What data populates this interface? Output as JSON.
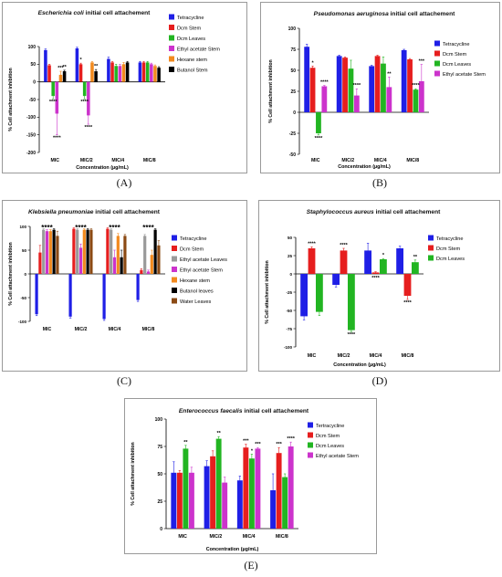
{
  "panels": [
    {
      "letter": "(A)",
      "title_italic": "Escherichia coli",
      "title_rest": " initial cell attachement",
      "chart_data": {
        "type": "bar",
        "title": "Escherichia coli initial cell attachement",
        "xlabel": "Concentration (µg/mL)",
        "ylabel": "% Cell attachment inhibition",
        "ylim": [
          -200,
          100
        ],
        "yticks": [
          -200,
          -150,
          -100,
          -50,
          0,
          50,
          100
        ],
        "categories": [
          "MIC",
          "MIC/2",
          "MIC/4",
          "MIC/8"
        ],
        "legend_position": "right",
        "series": [
          {
            "name": "Tetracycline",
            "color": "#1f1fe6",
            "values": [
              90,
              95,
              65,
              55
            ],
            "errors": [
              3,
              3,
              5,
              3
            ]
          },
          {
            "name": "Dcm Stem",
            "color": "#e61e1e",
            "values": [
              47,
              50,
              55,
              55
            ],
            "errors": [
              3,
              3,
              3,
              3
            ]
          },
          {
            "name": "Dcm Leaves",
            "color": "#22b522",
            "values": [
              -40,
              -40,
              45,
              55
            ],
            "errors": [
              8,
              8,
              5,
              3
            ]
          },
          {
            "name": "Ethyl acetate Stem",
            "color": "#cc33cc",
            "values": [
              -90,
              -95,
              45,
              50
            ],
            "errors": [
              60,
              25,
              5,
              3
            ]
          },
          {
            "name": "Hexane stem",
            "color": "#f28a1e",
            "values": [
              20,
              55,
              50,
              45
            ],
            "errors": [
              10,
              3,
              5,
              3
            ]
          },
          {
            "name": "Butanol Stem",
            "color": "#000000",
            "values": [
              30,
              30,
              55,
              40
            ],
            "errors": [
              3,
              5,
              3,
              3
            ]
          }
        ],
        "annotations": [
          {
            "category": 0,
            "series": 3,
            "text": "****",
            "side": "below"
          },
          {
            "category": 0,
            "series": 2,
            "text": "****",
            "side": "below"
          },
          {
            "category": 0,
            "series": 4,
            "text": "***",
            "side": "above"
          },
          {
            "category": 0,
            "series": 5,
            "text": "**",
            "side": "above"
          },
          {
            "category": 1,
            "series": 1,
            "text": "*",
            "side": "above"
          },
          {
            "category": 1,
            "series": 3,
            "text": "****",
            "side": "below"
          },
          {
            "category": 1,
            "series": 2,
            "text": "****",
            "side": "below"
          },
          {
            "category": 1,
            "series": 5,
            "text": "**",
            "side": "above"
          }
        ]
      }
    },
    {
      "letter": "(B)",
      "title_italic": "Pseudomonas aeruginosa",
      "title_rest": " initial cell attachement",
      "chart_data": {
        "type": "bar",
        "title": "Pseudomonas aeruginosa initial cell attachement",
        "xlabel": "Concentration (µg/mL)",
        "ylabel": "% Cell attachment inhibition",
        "ylim": [
          -50,
          100
        ],
        "yticks": [
          -50,
          -25,
          0,
          25,
          50,
          75,
          100
        ],
        "categories": [
          "MIC",
          "MIC/2",
          "MIC/4",
          "MIC/8"
        ],
        "legend_position": "right",
        "series": [
          {
            "name": "Tetracycline",
            "color": "#1f1fe6",
            "values": [
              78,
              67,
              55,
              74
            ],
            "errors": [
              3,
              1,
              1,
              1
            ]
          },
          {
            "name": "Dcm Stem",
            "color": "#e61e1e",
            "values": [
              53,
              65,
              67,
              63
            ],
            "errors": [
              2,
              1,
              1,
              1
            ]
          },
          {
            "name": "Dcm Leaves",
            "color": "#22b522",
            "values": [
              -25,
              52,
              58,
              27
            ],
            "errors": [
              2,
              10,
              8,
              1
            ]
          },
          {
            "name": "Ethyl acetate Stem",
            "color": "#cc33cc",
            "values": [
              31,
              20,
              30,
              37
            ],
            "errors": [
              1,
              8,
              12,
              20
            ]
          }
        ],
        "annotations": [
          {
            "category": 0,
            "series": 1,
            "text": "*",
            "side": "above"
          },
          {
            "category": 0,
            "series": 2,
            "text": "****",
            "side": "below"
          },
          {
            "category": 0,
            "series": 3,
            "text": "****",
            "side": "above"
          },
          {
            "category": 1,
            "series": 3,
            "text": "****",
            "side": "above"
          },
          {
            "category": 2,
            "series": 3,
            "text": "**",
            "side": "above"
          },
          {
            "category": 3,
            "series": 2,
            "text": "****",
            "side": "above"
          },
          {
            "category": 3,
            "series": 3,
            "text": "***",
            "side": "above"
          }
        ]
      }
    },
    {
      "letter": "(C)",
      "title_italic": "Klebsiella pneumoniae",
      "title_rest": " initial cell attachement",
      "chart_data": {
        "type": "bar",
        "title": "Klebsiella pneumoniae initial cell attachement",
        "xlabel": "",
        "ylabel": "% Cell attachment inhibition",
        "ylim": [
          -100,
          100
        ],
        "yticks": [
          -100,
          -50,
          0,
          50,
          100
        ],
        "categories": [
          "MIC",
          "MIC/2",
          "MIC/4",
          "MIC/8"
        ],
        "legend_position": "right",
        "series": [
          {
            "name": "Tetracycline",
            "color": "#1f1fe6",
            "values": [
              -85,
              -90,
              -95,
              -55
            ],
            "errors": [
              3,
              3,
              3,
              3
            ]
          },
          {
            "name": "Dcm Stem",
            "color": "#e61e1e",
            "values": [
              45,
              95,
              95,
              8
            ],
            "errors": [
              15,
              2,
              2,
              3
            ]
          },
          {
            "name": "Ethyl acetate Leaves",
            "color": "#9a9a9a",
            "values": [
              93,
              93,
              93,
              80
            ],
            "errors": [
              2,
              2,
              2,
              3
            ]
          },
          {
            "name": "Ethyl acetate Stem",
            "color": "#cc33cc",
            "values": [
              90,
              55,
              35,
              5
            ],
            "errors": [
              3,
              8,
              15,
              3
            ]
          },
          {
            "name": "Hexane stem",
            "color": "#f28a1e",
            "values": [
              90,
              93,
              80,
              40
            ],
            "errors": [
              3,
              2,
              5,
              10
            ]
          },
          {
            "name": "Butanol leaves",
            "color": "#000000",
            "values": [
              93,
              93,
              35,
              93
            ],
            "errors": [
              2,
              2,
              15,
              2
            ]
          },
          {
            "name": "Water Leaves",
            "color": "#8b4a14",
            "values": [
              80,
              93,
              80,
              60
            ],
            "errors": [
              10,
              2,
              3,
              10
            ]
          }
        ],
        "annotations": [
          {
            "category": 0,
            "text": "****",
            "side": "top"
          },
          {
            "category": 1,
            "text": "****",
            "side": "top"
          },
          {
            "category": 2,
            "text": "****",
            "side": "top"
          },
          {
            "category": 3,
            "text": "****",
            "side": "top"
          }
        ]
      }
    },
    {
      "letter": "(D)",
      "title_italic": "Staphylococcus aureus",
      "title_rest": " initial cell attachement",
      "chart_data": {
        "type": "bar",
        "title": "Staphylococcus aureus initial cell attachement",
        "xlabel": "Concentration (µg/mL)",
        "ylabel": "% Cell attachment inhibition",
        "ylim": [
          -100,
          50
        ],
        "yticks": [
          -100,
          -75,
          -50,
          -25,
          0,
          25,
          50
        ],
        "categories": [
          "MIC",
          "MIC/2",
          "MIC/4",
          "MIC/8"
        ],
        "legend_position": "right",
        "series": [
          {
            "name": "Tetracycline",
            "color": "#1f1fe6",
            "values": [
              -58,
              -15,
              32,
              35
            ],
            "errors": [
              5,
              3,
              10,
              3
            ]
          },
          {
            "name": "Dcm Stem",
            "color": "#e61e1e",
            "values": [
              35,
              32,
              2,
              -30
            ],
            "errors": [
              2,
              3,
              1,
              5
            ]
          },
          {
            "name": "Dcm Leaves",
            "color": "#22b522",
            "values": [
              -52,
              -77,
              20,
              16
            ],
            "errors": [
              5,
              2,
              1,
              3
            ]
          }
        ],
        "annotations": [
          {
            "category": 0,
            "series": 1,
            "text": "****",
            "side": "above"
          },
          {
            "category": 1,
            "series": 1,
            "text": "****",
            "side": "above"
          },
          {
            "category": 1,
            "series": 2,
            "text": "****",
            "side": "below"
          },
          {
            "category": 2,
            "series": 1,
            "text": "****",
            "side": "below"
          },
          {
            "category": 2,
            "series": 2,
            "text": "*",
            "side": "above"
          },
          {
            "category": 3,
            "series": 1,
            "text": "****",
            "side": "below"
          },
          {
            "category": 3,
            "series": 2,
            "text": "**",
            "side": "above"
          }
        ]
      }
    },
    {
      "letter": "(E)",
      "title_italic": "Enterococcus faecalis",
      "title_rest": " initial cell attachement",
      "chart_data": {
        "type": "bar",
        "title": "Enterococcus faecalis initial cell attachement",
        "xlabel": "Concentration (µg/mL)",
        "ylabel": "% Cell attachment inhibition",
        "ylim": [
          0,
          100
        ],
        "yticks": [
          0,
          25,
          50,
          75,
          100
        ],
        "categories": [
          "MIC",
          "MIC/2",
          "MIC/4",
          "MIC/8"
        ],
        "legend_position": "right",
        "series": [
          {
            "name": "Tertracycline",
            "color": "#1f1fe6",
            "values": [
              51,
              57,
              44,
              35
            ],
            "errors": [
              10,
              5,
              4,
              15
            ]
          },
          {
            "name": "Dcm Stem",
            "color": "#e61e1e",
            "values": [
              51,
              66,
              74,
              69
            ],
            "errors": [
              2,
              5,
              3,
              5
            ]
          },
          {
            "name": "Dcm Leaves",
            "color": "#22b522",
            "values": [
              73,
              82,
              64,
              47
            ],
            "errors": [
              3,
              2,
              4,
              3
            ]
          },
          {
            "name": "Ethyl acetate Stem",
            "color": "#cc33cc",
            "values": [
              51,
              42,
              73,
              75
            ],
            "errors": [
              5,
              5,
              1,
              4
            ]
          }
        ],
        "annotations": [
          {
            "category": 0,
            "series": 2,
            "text": "**",
            "side": "above"
          },
          {
            "category": 1,
            "series": 2,
            "text": "**",
            "side": "above"
          },
          {
            "category": 2,
            "series": 1,
            "text": "***",
            "side": "above"
          },
          {
            "category": 2,
            "series": 2,
            "text": "*",
            "side": "above"
          },
          {
            "category": 2,
            "series": 3,
            "text": "***",
            "side": "above"
          },
          {
            "category": 3,
            "series": 1,
            "text": "***",
            "side": "above"
          },
          {
            "category": 3,
            "series": 3,
            "text": "****",
            "side": "above"
          }
        ]
      }
    }
  ]
}
